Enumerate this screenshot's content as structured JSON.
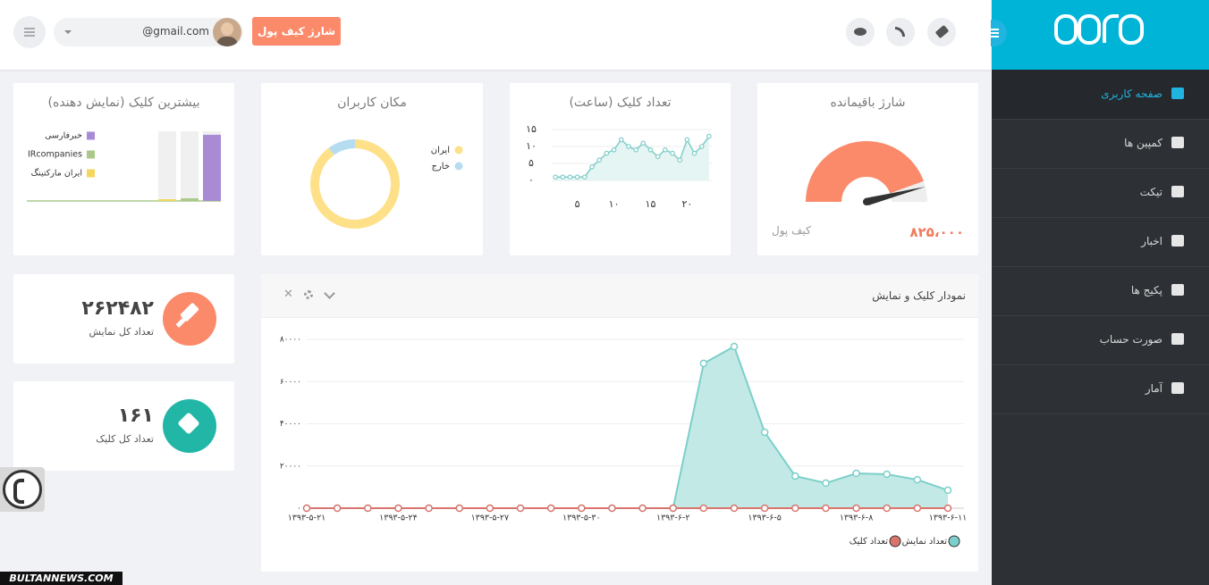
{
  "sidebar": {
    "menu": [
      "صفحه کاربری",
      "کمپین ها",
      "تیکت",
      "اخبار",
      "پکیج ها",
      "صورت حساب",
      "آمار"
    ]
  },
  "header": {
    "email": "@gmail.com",
    "button": "شارژ کیف پول"
  },
  "balance_card": {
    "title": "شارژ باقیمانده",
    "label": "کیف پول",
    "value": "۸۲۵،۰۰۰"
  },
  "stats": [
    {
      "value": "۲۶۲۴۸۲",
      "label": "تعداد کل نمایش"
    },
    {
      "value": "۱۶۱",
      "label": "تعداد کل کلیک"
    }
  ],
  "chart_data": [
    {
      "type": "line",
      "title": "تعداد کلیک (ساعت)",
      "color": "#7fcdc9",
      "fill": "#e4f5f3",
      "x": [
        2,
        3,
        4,
        5,
        6,
        7,
        8,
        9,
        10,
        11,
        12,
        13,
        14,
        15,
        16,
        17,
        18,
        19,
        20,
        21,
        22,
        23
      ],
      "values": [
        1,
        1,
        1,
        1,
        1,
        4,
        6,
        8,
        9,
        12,
        10,
        9,
        11,
        9,
        7,
        9,
        8,
        6,
        12,
        8,
        10,
        13
      ],
      "xlim": [
        1.5,
        23.5
      ],
      "ylim": [
        0,
        15
      ],
      "xticks": [
        {
          "value": 5,
          "label": "۵"
        },
        {
          "value": 10,
          "label": "۱۰"
        },
        {
          "value": 15,
          "label": "۱۵"
        },
        {
          "value": 20,
          "label": "۲۰"
        }
      ],
      "yticks": [
        {
          "value": 0,
          "label": "۰"
        },
        {
          "value": 5,
          "label": "۵"
        },
        {
          "value": 10,
          "label": "۱۰"
        },
        {
          "value": 15,
          "label": "۱۵"
        }
      ],
      "grid": true
    },
    {
      "type": "pie",
      "title": "مکان کاربران",
      "donut": true,
      "categories": [
        "ایران",
        "خارج"
      ],
      "values": [
        90,
        10
      ],
      "colors": [
        "#fde088",
        "#b6dcf2"
      ]
    },
    {
      "type": "bar",
      "title": "بیشترین کلیک (نمایش دهنده)",
      "ylim": [
        0,
        80
      ],
      "series": [
        {
          "name": "خبرفارسی",
          "color": "#a88bd4",
          "values": [
            76
          ]
        },
        {
          "name": "IRcompanies",
          "color": "#a9c88a",
          "values": [
            3
          ]
        },
        {
          "name": "ایران مارکتینگ",
          "color": "#f5d75e",
          "values": [
            2
          ]
        }
      ]
    },
    {
      "type": "area",
      "title": "نمودار کلیک و نمایش",
      "categories": [
        "۱۳۹۳-۵-۲۱",
        null,
        null,
        "۱۳۹۳-۵-۲۴",
        null,
        null,
        "۱۳۹۳-۵-۲۷",
        null,
        null,
        "۱۳۹۳-۵-۳۰",
        null,
        null,
        "۱۳۹۳-۶-۲",
        null,
        null,
        "۱۳۹۳-۶-۵",
        null,
        null,
        "۱۳۹۳-۶-۸",
        null,
        null,
        "۱۳۹۳-۶-۱۱"
      ],
      "series": [
        {
          "name": "تعداد نمایش",
          "color": "#7ccfca",
          "fill": "#c2e9e6",
          "values": [
            0,
            0,
            0,
            0,
            0,
            0,
            0,
            0,
            0,
            0,
            0,
            0,
            0,
            68600,
            76600,
            36000,
            15200,
            11900,
            16500,
            16100,
            13500,
            8500
          ]
        },
        {
          "name": "تعداد کلیک",
          "color": "#d9746c",
          "values": [
            0,
            0,
            0,
            0,
            0,
            0,
            0,
            0,
            0,
            0,
            0,
            0,
            0,
            0,
            0,
            0,
            0,
            0,
            0,
            0,
            0,
            0
          ]
        }
      ],
      "ylim": [
        0,
        80000
      ],
      "yticks": [
        {
          "value": 0,
          "label": "۰"
        },
        {
          "value": 20000,
          "label": "۲۰۰۰۰"
        },
        {
          "value": 40000,
          "label": "۴۰۰۰۰"
        },
        {
          "value": 60000,
          "label": "۶۰۰۰۰"
        },
        {
          "value": 80000,
          "label": "۸۰۰۰۰"
        }
      ],
      "grid": true
    }
  ],
  "watermark": "BULTANNEWS.COM"
}
